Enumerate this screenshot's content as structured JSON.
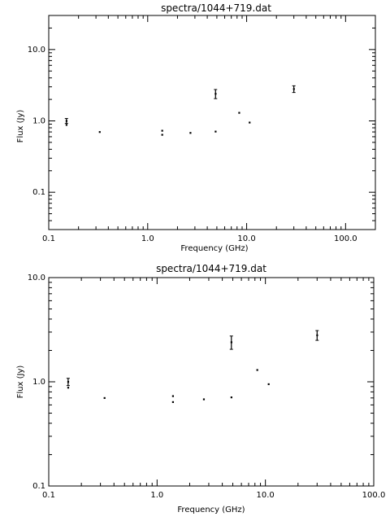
{
  "chart_data": [
    {
      "type": "scatter",
      "title": "spectra/1044+719.dat",
      "xlabel": "Frequency (GHz)",
      "ylabel": "Flux (Jy)",
      "xscale": "log",
      "yscale": "log",
      "xlim": [
        0.1,
        200
      ],
      "ylim": [
        0.03,
        30
      ],
      "x_ticks": [
        "0.1",
        "1.0",
        "10.0",
        "100.0"
      ],
      "y_ticks": [
        "0.1",
        "1.0",
        "10.0"
      ],
      "grid": false,
      "points": [
        {
          "x": 0.151,
          "y": 1.0,
          "err": 0.08
        },
        {
          "x": 0.151,
          "y": 0.88,
          "err": 0.0
        },
        {
          "x": 0.327,
          "y": 0.7,
          "err": 0.0
        },
        {
          "x": 1.4,
          "y": 0.73,
          "err": 0.0
        },
        {
          "x": 1.4,
          "y": 0.64,
          "err": 0.0
        },
        {
          "x": 2.7,
          "y": 0.68,
          "err": 0.0
        },
        {
          "x": 4.85,
          "y": 2.4,
          "err": 0.35
        },
        {
          "x": 4.85,
          "y": 0.71,
          "err": 0.0
        },
        {
          "x": 8.4,
          "y": 1.3,
          "err": 0.0
        },
        {
          "x": 10.7,
          "y": 0.95,
          "err": 0.0
        },
        {
          "x": 30.0,
          "y": 2.8,
          "err": 0.3
        }
      ]
    },
    {
      "type": "scatter",
      "title": "spectra/1044+719.dat",
      "xlabel": "Frequency (GHz)",
      "ylabel": "Flux (Jy)",
      "xscale": "log",
      "yscale": "log",
      "xlim": [
        0.1,
        100
      ],
      "ylim": [
        0.1,
        10
      ],
      "x_ticks": [
        "0.1",
        "1.0",
        "10.0",
        "100.0"
      ],
      "y_ticks": [
        "0.1",
        "1.0",
        "10.0"
      ],
      "grid": false,
      "points": [
        {
          "x": 0.151,
          "y": 1.0,
          "err": 0.08
        },
        {
          "x": 0.151,
          "y": 0.88,
          "err": 0.0
        },
        {
          "x": 0.327,
          "y": 0.7,
          "err": 0.0
        },
        {
          "x": 1.4,
          "y": 0.73,
          "err": 0.0
        },
        {
          "x": 1.4,
          "y": 0.64,
          "err": 0.0
        },
        {
          "x": 2.7,
          "y": 0.68,
          "err": 0.0
        },
        {
          "x": 4.85,
          "y": 2.4,
          "err": 0.35
        },
        {
          "x": 4.85,
          "y": 0.71,
          "err": 0.0
        },
        {
          "x": 8.4,
          "y": 1.3,
          "err": 0.0
        },
        {
          "x": 10.7,
          "y": 0.95,
          "err": 0.0
        },
        {
          "x": 30.0,
          "y": 2.8,
          "err": 0.3
        }
      ]
    }
  ]
}
